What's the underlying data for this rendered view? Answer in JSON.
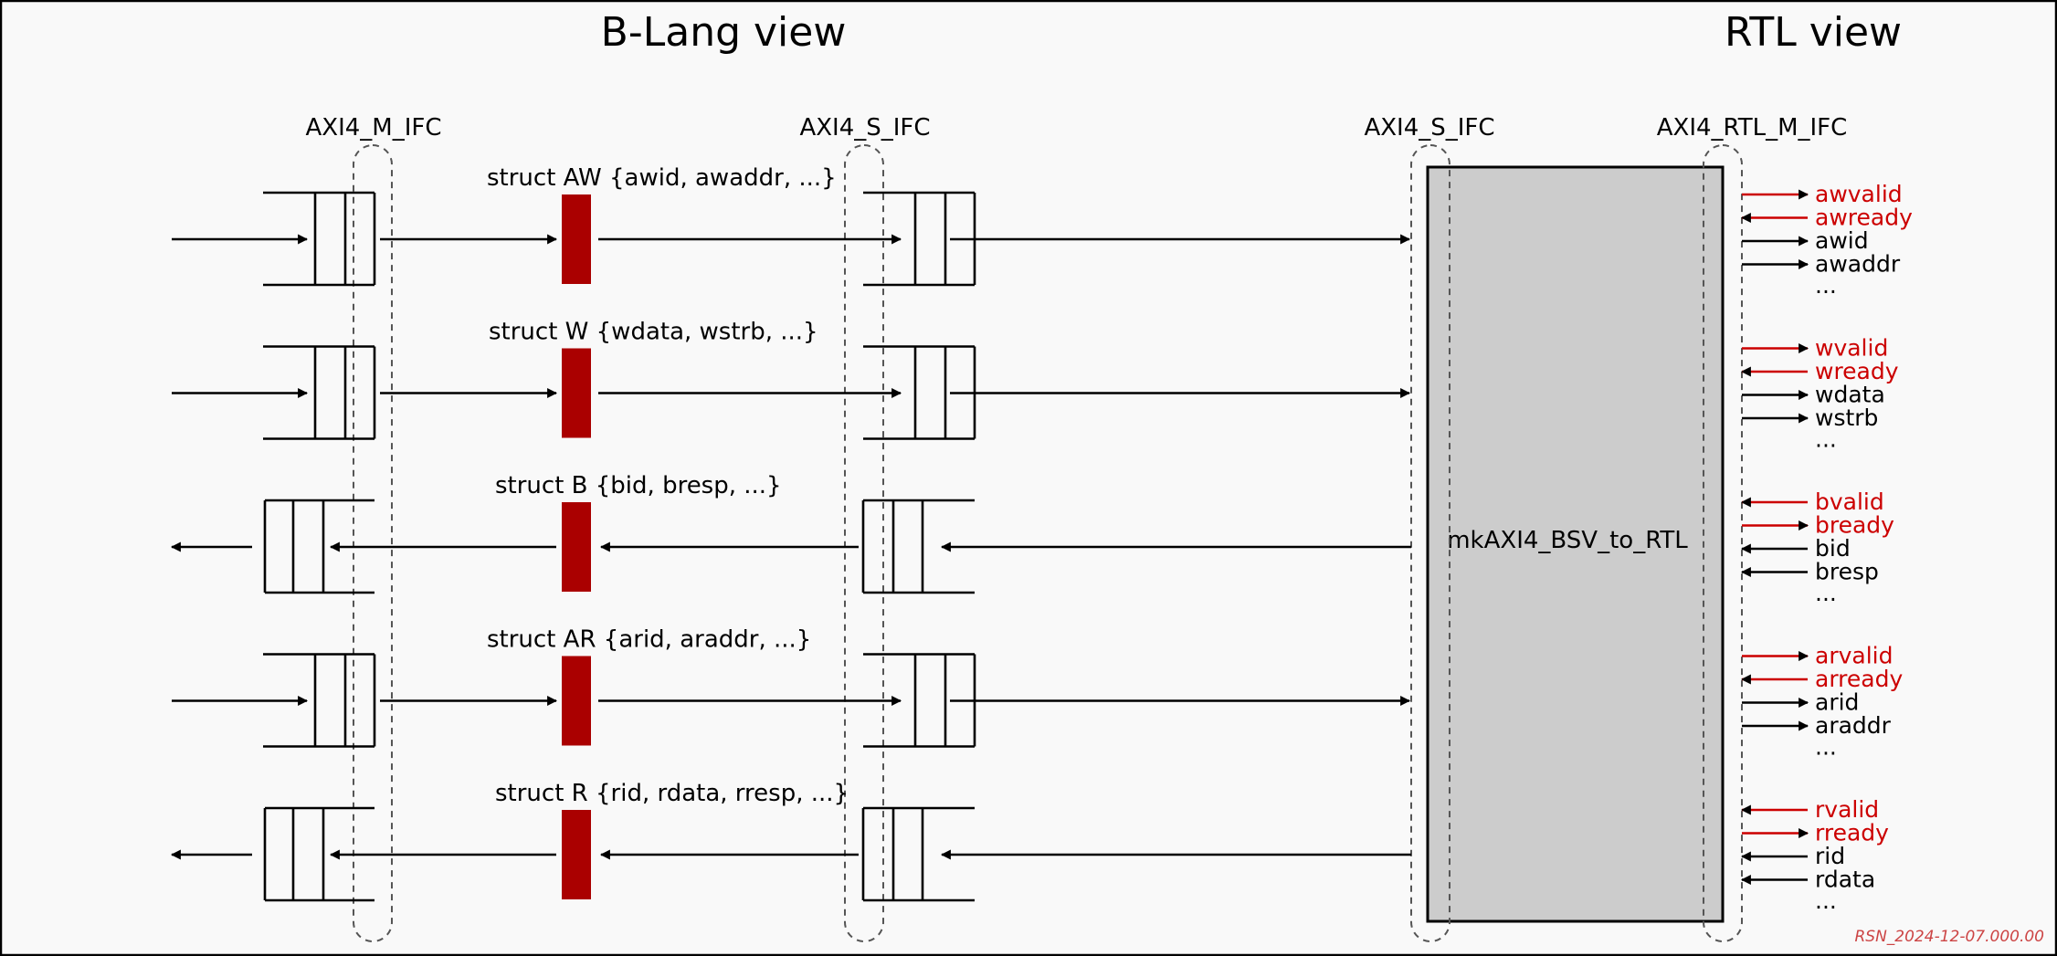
{
  "titles": {
    "left": "B-Lang view",
    "right": "RTL view"
  },
  "interfaces": {
    "m_ifc": "AXI4_M_IFC",
    "s_ifc_left": "AXI4_S_IFC",
    "s_ifc_right": "AXI4_S_IFC",
    "rtl_m_ifc": "AXI4_RTL_M_IFC"
  },
  "module_label": "mkAXI4_BSV_to_RTL",
  "channels": [
    {
      "struct_label": "struct AW {awid, awaddr, ...}",
      "direction": "master-to-slave",
      "signals": [
        {
          "name": "awvalid",
          "dir": "out",
          "color": "#cc0000"
        },
        {
          "name": "awready",
          "dir": "in",
          "color": "#cc0000"
        },
        {
          "name": "awid",
          "dir": "out",
          "color": "#000000"
        },
        {
          "name": "awaddr",
          "dir": "out",
          "color": "#000000"
        }
      ],
      "ellipsis": "..."
    },
    {
      "struct_label": "struct W {wdata, wstrb, ...}",
      "direction": "master-to-slave",
      "signals": [
        {
          "name": "wvalid",
          "dir": "out",
          "color": "#cc0000"
        },
        {
          "name": "wready",
          "dir": "in",
          "color": "#cc0000"
        },
        {
          "name": "wdata",
          "dir": "out",
          "color": "#000000"
        },
        {
          "name": "wstrb",
          "dir": "out",
          "color": "#000000"
        }
      ],
      "ellipsis": "..."
    },
    {
      "struct_label": "struct B {bid, bresp, ...}",
      "direction": "slave-to-master",
      "signals": [
        {
          "name": "bvalid",
          "dir": "in",
          "color": "#cc0000"
        },
        {
          "name": "bready",
          "dir": "out",
          "color": "#cc0000"
        },
        {
          "name": "bid",
          "dir": "in",
          "color": "#000000"
        },
        {
          "name": "bresp",
          "dir": "in",
          "color": "#000000"
        }
      ],
      "ellipsis": "..."
    },
    {
      "struct_label": "struct AR {arid, araddr, ...}",
      "direction": "master-to-slave",
      "signals": [
        {
          "name": "arvalid",
          "dir": "out",
          "color": "#cc0000"
        },
        {
          "name": "arready",
          "dir": "in",
          "color": "#cc0000"
        },
        {
          "name": "arid",
          "dir": "out",
          "color": "#000000"
        },
        {
          "name": "araddr",
          "dir": "out",
          "color": "#000000"
        }
      ],
      "ellipsis": "..."
    },
    {
      "struct_label": "struct R {rid, rdata, rresp, ...}",
      "direction": "slave-to-master",
      "signals": [
        {
          "name": "rvalid",
          "dir": "in",
          "color": "#cc0000"
        },
        {
          "name": "rready",
          "dir": "out",
          "color": "#cc0000"
        },
        {
          "name": "rid",
          "dir": "in",
          "color": "#000000"
        },
        {
          "name": "rdata",
          "dir": "in",
          "color": "#000000"
        }
      ],
      "ellipsis": "..."
    }
  ],
  "stamp": "RSN_2024-12-07.000.00",
  "colors": {
    "background": "#f9f9f9",
    "border": "#000000",
    "struct_block": "#aa0000",
    "module_fill": "#cccccc",
    "valid_ready": "#cc0000",
    "stamp": "#cc4444"
  }
}
